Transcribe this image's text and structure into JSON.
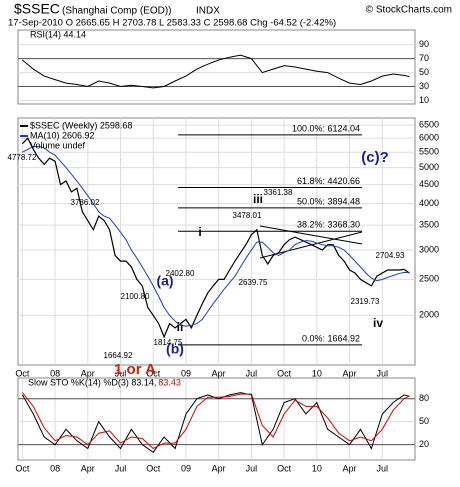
{
  "header": {
    "symbol": "$SSEC",
    "name": "(Shanghai Comp (EOD))",
    "exchange": "INDX",
    "credit": "© StockCharts.com",
    "quote": "17-Sep-2010   O 2665.65  H 2703.78  L 2583.33  C 2598.68  Chg -64.52 (-2.42%)"
  },
  "chart_data": [
    {
      "type": "line",
      "xlim": [
        -0.4,
        36
      ],
      "ylim": [
        5,
        111
      ],
      "yticks": [
        90,
        70,
        50,
        30,
        10
      ],
      "hlines": [
        70,
        30
      ],
      "grid": true,
      "x": [
        0,
        1,
        2,
        3,
        4,
        5,
        6,
        7,
        8,
        9,
        10,
        11,
        12,
        13,
        14,
        15,
        16,
        17,
        18,
        19,
        20,
        21,
        22,
        23,
        24,
        25,
        26,
        27,
        28,
        29,
        30,
        31,
        32,
        33,
        34,
        35,
        35.5
      ],
      "series": [
        {
          "name": "RSI(14) 44.14",
          "color": "#000000",
          "values": [
            68,
            55,
            45,
            40,
            35,
            33,
            30,
            38,
            35,
            30,
            32,
            30,
            28,
            30,
            38,
            45,
            55,
            62,
            68,
            72,
            75,
            70,
            50,
            55,
            60,
            58,
            55,
            52,
            50,
            42,
            35,
            33,
            38,
            45,
            48,
            46,
            44.14
          ]
        }
      ]
    },
    {
      "type": "line",
      "log_scale": true,
      "xlim": [
        -0.4,
        36
      ],
      "ylim": [
        1470,
        6800
      ],
      "grid": true,
      "yticks": [
        6500,
        6000,
        5500,
        5000,
        4500,
        4000,
        3500,
        3000,
        2500,
        2000
      ],
      "xticks": [
        {
          "value": 0,
          "label": "Oct"
        },
        {
          "value": 3,
          "label": "08"
        },
        {
          "value": 6,
          "label": "Apr"
        },
        {
          "value": 9,
          "label": "Jul"
        },
        {
          "value": 12,
          "label": "Oct"
        },
        {
          "value": 15,
          "label": "09"
        },
        {
          "value": 18,
          "label": "Apr"
        },
        {
          "value": 21,
          "label": "Jul"
        },
        {
          "value": 24,
          "label": "Oct"
        },
        {
          "value": 27,
          "label": "10"
        },
        {
          "value": 30,
          "label": "Apr"
        },
        {
          "value": 33,
          "label": "Jul"
        }
      ],
      "x": [
        0,
        0.5,
        1,
        1.5,
        2,
        2.5,
        3,
        3.5,
        4,
        4.5,
        5,
        5.5,
        6,
        6.5,
        7,
        7.5,
        8,
        8.5,
        9,
        9.5,
        10,
        10.5,
        11,
        11.5,
        12,
        12.5,
        13,
        13.5,
        14,
        14.5,
        15,
        15.5,
        16,
        16.5,
        17,
        17.5,
        18,
        18.5,
        19,
        19.5,
        20,
        20.5,
        21,
        21.5,
        22,
        22.5,
        23,
        23.5,
        24,
        24.5,
        25,
        25.5,
        26,
        26.5,
        27,
        27.5,
        28,
        28.5,
        29,
        29.5,
        30,
        30.5,
        31,
        31.5,
        32,
        32.5,
        33,
        33.5,
        34,
        34.5,
        35,
        35.5
      ],
      "series": [
        {
          "name": "$SSEC (Weekly) 2598.68",
          "color": "#000000",
          "values": [
            5800,
            6000,
            5600,
            5300,
            5100,
            5300,
            5200,
            4500,
            4600,
            4300,
            4400,
            3800,
            3600,
            3400,
            3700,
            3600,
            3400,
            2900,
            2800,
            2800,
            2700,
            2500,
            2400,
            2100,
            2000,
            1900,
            1750,
            1900,
            1850,
            1900,
            1950,
            1850,
            2000,
            2150,
            2300,
            2400,
            2500,
            2500,
            2650,
            2800,
            2950,
            3100,
            3300,
            3400,
            2900,
            2750,
            2900,
            2950,
            3100,
            3200,
            3250,
            3200,
            3150,
            3100,
            3050,
            3000,
            3100,
            3100,
            2900,
            2800,
            2650,
            2600,
            2500,
            2450,
            2400,
            2550,
            2600,
            2650,
            2650,
            2650,
            2660,
            2598.68
          ]
        },
        {
          "name": "MA(10) 2606.92",
          "color": "#1f3fbf",
          "values": [
            5500,
            5600,
            5700,
            5700,
            5650,
            5500,
            5400,
            5200,
            5000,
            4800,
            4600,
            4400,
            4200,
            4000,
            3800,
            3700,
            3650,
            3500,
            3350,
            3200,
            3000,
            2850,
            2700,
            2550,
            2400,
            2250,
            2100,
            2000,
            1930,
            1880,
            1870,
            1880,
            1900,
            1950,
            2050,
            2150,
            2250,
            2350,
            2450,
            2550,
            2700,
            2850,
            3000,
            3150,
            3150,
            3050,
            2950,
            2900,
            2950,
            3000,
            3100,
            3150,
            3180,
            3170,
            3130,
            3100,
            3080,
            3080,
            3050,
            3000,
            2900,
            2800,
            2700,
            2600,
            2520,
            2480,
            2500,
            2530,
            2560,
            2590,
            2610,
            2606.92
          ]
        }
      ],
      "legend_note": "Volume undef",
      "fib_levels": [
        {
          "label": "100.0%: 6124.04",
          "value": 6124.04
        },
        {
          "label": "61.8%: 4420.66",
          "value": 4420.66
        },
        {
          "label": "50.0%: 3894.48",
          "value": 3894.48
        },
        {
          "label": "38.2%: 3368.30",
          "value": 3368.3
        },
        {
          "label": "0.0%: 1664.92",
          "value": 1664.92
        }
      ],
      "annotations": [
        {
          "text": "4778.72",
          "color": "#000000"
        },
        {
          "text": "3786.02",
          "color": "#000000"
        },
        {
          "text": "2100.80",
          "color": "#000000"
        },
        {
          "text": "2402.80",
          "color": "#000000"
        },
        {
          "text": "3478.01",
          "color": "#000000"
        },
        {
          "text": "3361.38",
          "color": "#000000"
        },
        {
          "text": "2639.75",
          "color": "#000000"
        },
        {
          "text": "2319.73",
          "color": "#000000"
        },
        {
          "text": "2704.93",
          "color": "#000000"
        },
        {
          "text": "1664.92",
          "color": "#000000"
        },
        {
          "text": "1814.75",
          "color": "#000000"
        },
        {
          "text": "(a)",
          "color": "#1a1aa8"
        },
        {
          "text": "i",
          "color": "#000000"
        },
        {
          "text": "ii",
          "color": "#000000"
        },
        {
          "text": "iii",
          "color": "#000000"
        },
        {
          "text": "iv",
          "color": "#000000"
        },
        {
          "text": "(b)",
          "color": "#1a1aa8"
        },
        {
          "text": "(c)?",
          "color": "#1a1aa8"
        },
        {
          "text": "1 or A",
          "color": "#cc2200"
        }
      ]
    },
    {
      "type": "line",
      "xlim": [
        -0.4,
        36
      ],
      "ylim": [
        0,
        107
      ],
      "yticks": [
        80,
        50,
        20
      ],
      "hlines": [
        80,
        20
      ],
      "grid": true,
      "xticks": [
        {
          "value": 0,
          "label": "Oct"
        },
        {
          "value": 3,
          "label": "08"
        },
        {
          "value": 6,
          "label": "Apr"
        },
        {
          "value": 9,
          "label": "Jul"
        },
        {
          "value": 12,
          "label": "Oct"
        },
        {
          "value": 15,
          "label": "09"
        },
        {
          "value": 18,
          "label": "Apr"
        },
        {
          "value": 21,
          "label": "Jul"
        },
        {
          "value": 24,
          "label": "Oct"
        },
        {
          "value": 27,
          "label": "10"
        },
        {
          "value": 30,
          "label": "Apr"
        },
        {
          "value": 33,
          "label": "Jul"
        }
      ],
      "x": [
        0,
        1,
        2,
        3,
        4,
        5,
        6,
        7,
        8,
        9,
        10,
        11,
        12,
        13,
        14,
        15,
        16,
        17,
        18,
        19,
        20,
        21,
        22,
        23,
        24,
        25,
        26,
        27,
        28,
        29,
        30,
        31,
        32,
        33,
        34,
        35,
        35.5
      ],
      "series": [
        {
          "name": "Slow STO %K(14) %D(3) 83.14,",
          "color": "#000000",
          "values": [
            85,
            60,
            30,
            20,
            40,
            25,
            15,
            50,
            30,
            15,
            40,
            20,
            10,
            30,
            15,
            60,
            80,
            85,
            80,
            85,
            88,
            85,
            20,
            40,
            75,
            80,
            60,
            75,
            40,
            30,
            20,
            40,
            15,
            60,
            75,
            85,
            83.14
          ]
        },
        {
          "name": "83.43",
          "color": "#dd0000",
          "values": [
            88,
            70,
            42,
            25,
            32,
            30,
            20,
            35,
            38,
            22,
            30,
            28,
            15,
            22,
            22,
            40,
            70,
            82,
            82,
            83,
            86,
            86,
            45,
            30,
            60,
            78,
            70,
            70,
            55,
            35,
            25,
            30,
            25,
            40,
            65,
            80,
            83.43
          ]
        }
      ]
    }
  ]
}
